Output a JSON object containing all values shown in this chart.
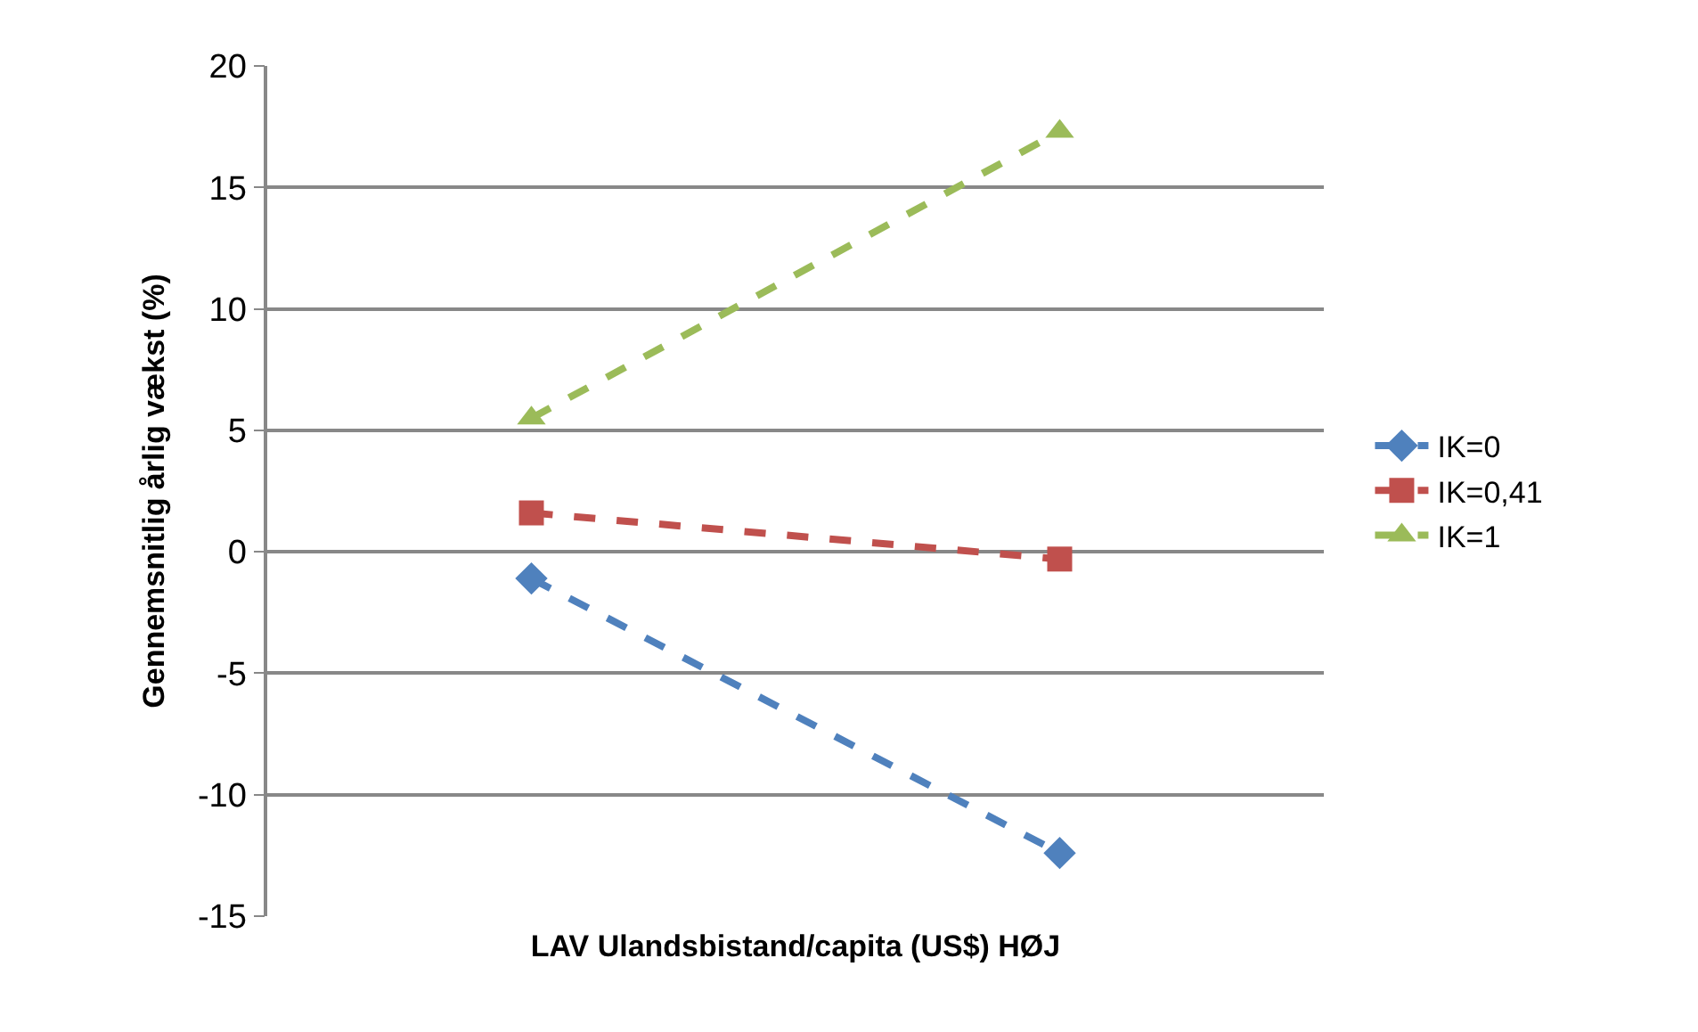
{
  "chart_data": {
    "type": "line",
    "xlabel": "LAV Ulandsbistand/capita (US$) HØJ",
    "ylabel": "Gennemsnitlig årlig vækst (%)",
    "categories": [
      null,
      null
    ],
    "series": [
      {
        "name": "IK=0",
        "color": "#4f81bd",
        "values": [
          -1.1,
          -12.4
        ],
        "marker": "diamond"
      },
      {
        "name": "IK=0,41",
        "color": "#c0504d",
        "values": [
          1.6,
          -0.3
        ],
        "marker": "square"
      },
      {
        "name": "IK=1",
        "color": "#9bbb59",
        "values": [
          5.5,
          17.3
        ],
        "marker": "triangle"
      }
    ],
    "ylim": [
      -15,
      20
    ],
    "yticks": [
      -15,
      -10,
      -5,
      0,
      5,
      10,
      15,
      20
    ],
    "grid": "y",
    "legend": "right",
    "line_style": "dashed"
  }
}
